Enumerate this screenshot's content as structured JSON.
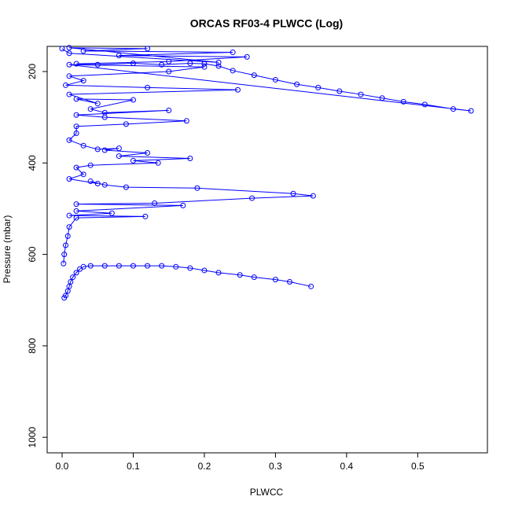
{
  "chart_data": {
    "type": "line",
    "title": "ORCAS RF03-4 PLWCC (Log)",
    "x_label": "PLWCC",
    "y_label": "Pressure (mbar)",
    "x": [
      0.003,
      0.005,
      0.008,
      0.01,
      0.012,
      0.015,
      0.02,
      0.025,
      0.03,
      0.04,
      0.06,
      0.08,
      0.1,
      0.12,
      0.14,
      0.16,
      0.18,
      0.2,
      0.22,
      0.25,
      0.27,
      0.3,
      0.32,
      0.35,
      null,
      0.002,
      0.003,
      0.005,
      0.008,
      0.01,
      0.02,
      0.117,
      0.01,
      0.07,
      0.02,
      0.17,
      0.02,
      0.13,
      0.267,
      0.353,
      0.325,
      0.19,
      0.09,
      0.06,
      0.04,
      0.05,
      0.01,
      0.03,
      0.02,
      0.04,
      0.135,
      0.1,
      0.18,
      0.08,
      0.12,
      0.06,
      0.08,
      0.05,
      0.03,
      0.01,
      0.02,
      0.02,
      0.09,
      0.175,
      0.06,
      0.02,
      0.15,
      0.06,
      0.04,
      0.1,
      0.02,
      0.05,
      0.01,
      0.247,
      0.12,
      0.005,
      0.03,
      0.01,
      0.15,
      0.2,
      0.01,
      0.575,
      0.55,
      0.51,
      0.48,
      0.45,
      0.42,
      0.39,
      0.36,
      0.33,
      0.3,
      0.27,
      0.24,
      0.22,
      0.2,
      0.18,
      0.14,
      0.1,
      0.05,
      0.02,
      0.15,
      0.26,
      0.08,
      0.24,
      0.03,
      0.12,
      0.01,
      0.22,
      0.01,
      0.0
    ],
    "series": [
      {
        "color": "#0000ff",
        "values": [
          695,
          690,
          680,
          670,
          660,
          650,
          640,
          632,
          627,
          625,
          625,
          625,
          625,
          625,
          625,
          627,
          630,
          635,
          640,
          645,
          650,
          655,
          660,
          670,
          null,
          620,
          600,
          580,
          560,
          540,
          520,
          517,
          515,
          510,
          505,
          493,
          490,
          488,
          477,
          472,
          467,
          455,
          453,
          448,
          440,
          445,
          435,
          425,
          410,
          405,
          400,
          395,
          390,
          385,
          378,
          372,
          368,
          370,
          362,
          350,
          335,
          320,
          315,
          308,
          300,
          295,
          285,
          290,
          282,
          262,
          260,
          270,
          250,
          240,
          235,
          230,
          220,
          210,
          200,
          190,
          185,
          286,
          282,
          272,
          266,
          258,
          250,
          243,
          235,
          228,
          218,
          208,
          198,
          188,
          183,
          182,
          185,
          182,
          185,
          183,
          178,
          168,
          165,
          158,
          155,
          150,
          148,
          180,
          160,
          150
        ]
      }
    ],
    "xlim": [
      -0.021,
      0.598
    ],
    "xticks": [
      {
        "value": 0,
        "label": "0.0"
      },
      0.1,
      0.2,
      0.3,
      0.4,
      0.5
    ],
    "ylim": [
      1034,
      145
    ],
    "yticks": [
      200,
      400,
      600,
      800,
      1000
    ]
  }
}
